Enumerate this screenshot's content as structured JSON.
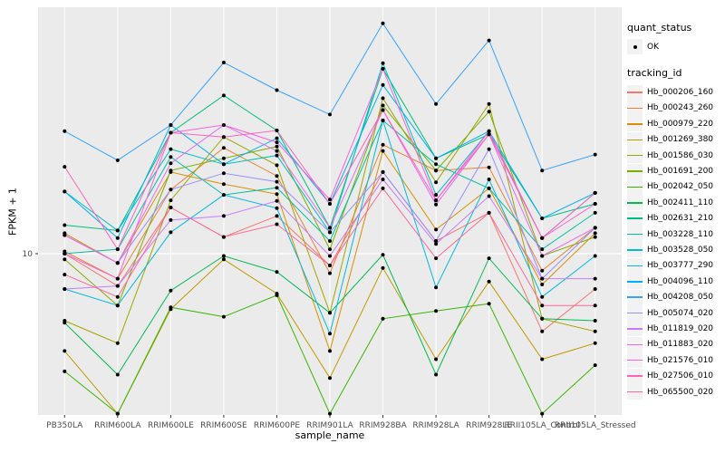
{
  "chart_data": {
    "type": "line",
    "title": "",
    "xlabel": "sample_name",
    "ylabel": "FPKM + 1",
    "y_scale": "log10",
    "y_tick_labels": [
      "10"
    ],
    "y_tick_values": [
      10
    ],
    "ylim": [
      2.3,
      92
    ],
    "grid": "on",
    "panel_bg": "#EBEBEB",
    "grid_color": "#FFFFFF",
    "point_color": "#000000",
    "tick_label_color": "#4D4D4D",
    "legend_position": "right",
    "categories": [
      "PB350LA",
      "RRIM600LA",
      "RRIM600LE",
      "RRIM600SE",
      "RRIM600PE",
      "RRIM901LA",
      "RRIM928BA",
      "RRIM928LA",
      "RRIM928LE",
      "RRII105LA_Control",
      "RRII105LA_Stressed"
    ],
    "legend": {
      "quant_status_title": "quant_status",
      "quant_status_items": [
        "OK"
      ],
      "series_title": "tracking_id"
    },
    "series": [
      {
        "name": "Hb_000206_160",
        "color": "#F8766D",
        "values": [
          10.0,
          7.5,
          15.1,
          11.6,
          14.0,
          9.0,
          20.7,
          11.2,
          14.4,
          5.0,
          7.3
        ]
      },
      {
        "name": "Hb_000243_260",
        "color": "#EA8331",
        "values": [
          10.2,
          8.0,
          17.7,
          25.7,
          20.0,
          8.4,
          26.4,
          21.0,
          21.6,
          8.6,
          12.6
        ]
      },
      {
        "name": "Hb_000979_220",
        "color": "#D89000",
        "values": [
          12.0,
          9.2,
          20.7,
          18.6,
          17.0,
          4.2,
          25.0,
          12.4,
          17.9,
          7.6,
          12.0
        ]
      },
      {
        "name": "Hb_001269_380",
        "color": "#C09B00",
        "values": [
          4.2,
          2.4,
          6.1,
          9.5,
          7.0,
          3.3,
          8.8,
          3.9,
          7.8,
          3.9,
          4.5
        ]
      },
      {
        "name": "Hb_001586_030",
        "color": "#A3A500",
        "values": [
          5.5,
          4.5,
          16.1,
          28.3,
          22.0,
          5.9,
          40.0,
          18.9,
          38.0,
          5.6,
          5.0
        ]
      },
      {
        "name": "Hb_001691_200",
        "color": "#7CAE00",
        "values": [
          9.5,
          6.3,
          21.0,
          23.4,
          26.0,
          10.4,
          37.5,
          21.0,
          35.5,
          9.8,
          11.6
        ]
      },
      {
        "name": "Hb_002042_050",
        "color": "#39B600",
        "values": [
          3.5,
          2.4,
          6.2,
          5.7,
          6.9,
          2.4,
          5.6,
          6.0,
          6.4,
          2.4,
          3.7
        ]
      },
      {
        "name": "Hb_002411_110",
        "color": "#00BB4E",
        "values": [
          5.4,
          3.4,
          7.2,
          9.8,
          8.5,
          5.9,
          9.9,
          3.4,
          9.6,
          5.6,
          5.5
        ]
      },
      {
        "name": "Hb_002631_210",
        "color": "#00BF7D",
        "values": [
          12.9,
          12.3,
          29.4,
          41.0,
          30.0,
          12.6,
          52.0,
          23.4,
          29.0,
          13.7,
          15.6
        ]
      },
      {
        "name": "Hb_003228_110",
        "color": "#00C1A3",
        "values": [
          10.0,
          10.4,
          23.7,
          16.9,
          18.0,
          11.2,
          32.8,
          22.2,
          17.9,
          10.4,
          14.4
        ]
      },
      {
        "name": "Hb_003528_050",
        "color": "#00BFC4",
        "values": [
          17.4,
          12.3,
          25.4,
          22.2,
          24.0,
          12.1,
          54.7,
          16.9,
          29.8,
          11.5,
          17.2
        ]
      },
      {
        "name": "Hb_003777_290",
        "color": "#00BAE0",
        "values": [
          7.3,
          6.3,
          12.1,
          16.9,
          15.0,
          4.9,
          32.8,
          7.4,
          19.4,
          6.8,
          9.8
        ]
      },
      {
        "name": "Hb_004096_110",
        "color": "#00B0F6",
        "values": [
          17.4,
          11.5,
          31.5,
          22.2,
          28.0,
          15.6,
          45.0,
          23.4,
          29.8,
          13.7,
          17.2
        ]
      },
      {
        "name": "Hb_004208_050",
        "color": "#35A2FF",
        "values": [
          29.8,
          23.0,
          31.5,
          55.0,
          43.0,
          34.6,
          78.0,
          38.0,
          67.0,
          21.0,
          24.2
        ]
      },
      {
        "name": "Hb_005074_020",
        "color": "#9590FF",
        "values": [
          11.8,
          9.2,
          17.7,
          20.5,
          19.0,
          12.1,
          20.7,
          11.2,
          25.4,
          8.0,
          12.6
        ]
      },
      {
        "name": "Hb_011819_020",
        "color": "#C77CFF",
        "values": [
          7.3,
          7.5,
          13.5,
          14.0,
          16.0,
          9.8,
          19.4,
          10.9,
          16.7,
          8.0,
          8.0
        ]
      },
      {
        "name": "Hb_011883_020",
        "color": "#E76BF3",
        "values": [
          11.8,
          9.2,
          22.4,
          31.5,
          25.0,
          12.6,
          36.0,
          15.5,
          29.0,
          9.8,
          12.6
        ]
      },
      {
        "name": "Hb_021576_010",
        "color": "#FA62DB",
        "values": [
          10.0,
          8.0,
          29.4,
          31.5,
          27.0,
          16.2,
          52.0,
          16.1,
          29.8,
          11.5,
          15.6
        ]
      },
      {
        "name": "Hb_027506_010",
        "color": "#FF62BC",
        "values": [
          21.7,
          10.4,
          29.4,
          28.3,
          30.0,
          15.6,
          36.0,
          16.1,
          29.0,
          11.5,
          17.2
        ]
      },
      {
        "name": "Hb_065500_020",
        "color": "#FF6A98",
        "values": [
          8.3,
          6.8,
          15.1,
          11.6,
          13.0,
          9.0,
          17.9,
          9.6,
          14.4,
          6.3,
          6.3
        ]
      }
    ]
  }
}
